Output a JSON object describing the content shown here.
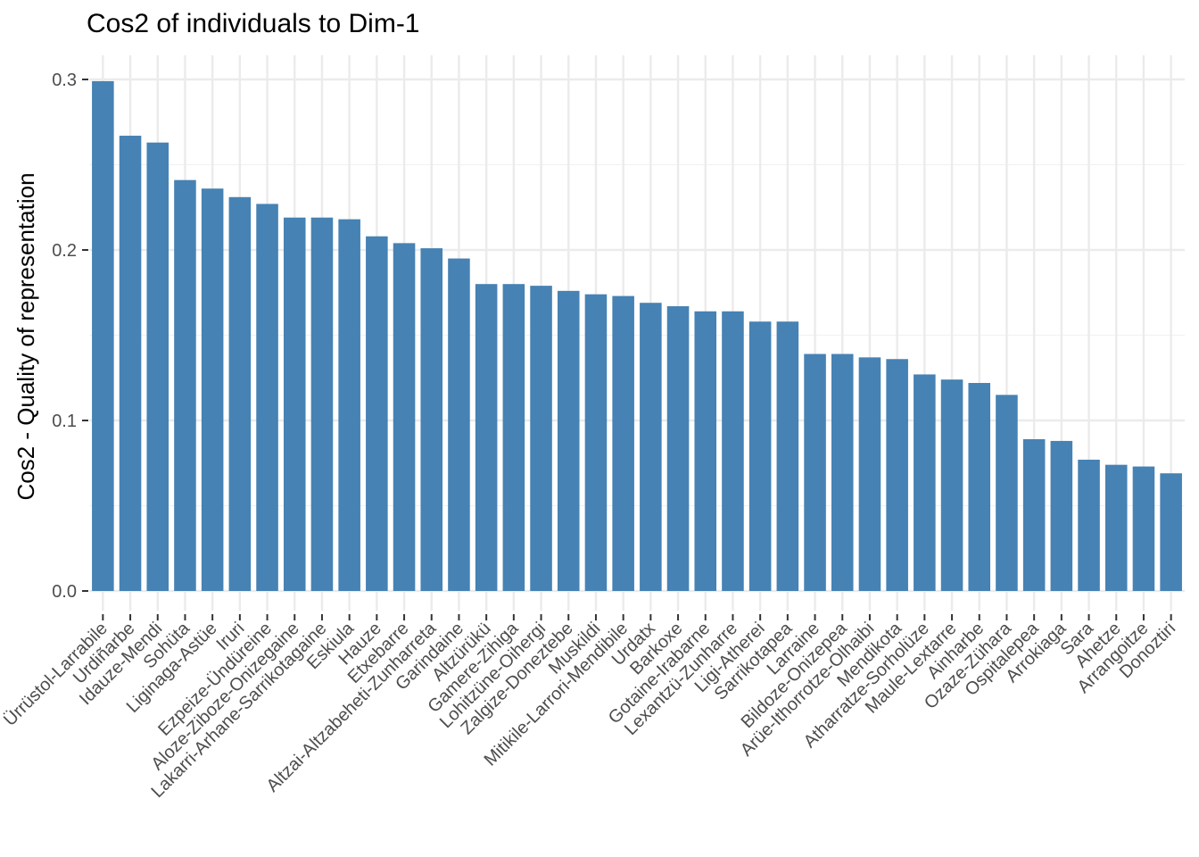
{
  "chart_data": {
    "type": "bar",
    "title": "Cos2 of individuals to Dim-1",
    "xlabel": "",
    "ylabel": "Cos2 - Quality of representation",
    "ylim": [
      0,
      0.31
    ],
    "yticks": [
      "0.0",
      "0.1",
      "0.2",
      "0.3"
    ],
    "grid": true,
    "bar_color": "#4682B4",
    "categories": [
      "Ürrüstol-Larrabile",
      "Urdiñarbe",
      "Idauze-Mendi",
      "Sohüta",
      "Liginaga-Astüe",
      "Iruri",
      "Ezpeize-Ündüreine",
      "Aloze-Ziboze-Onizegaine",
      "Lakarri-Arhane-Sarrikotagaine",
      "Eskiula",
      "Hauze",
      "Etxebarre",
      "Altzai-Altzabeheti-Zunharreta",
      "Garindaine",
      "Altzürükü",
      "Gamere-Zihiga",
      "Lohitzüne-Oihergi",
      "Zalgize-Doneztebe",
      "Muskildi",
      "Mitikile-Larrori-Mendibile",
      "Urdatx",
      "Barkoxe",
      "Gotaine-Irabarne",
      "Lexantzü-Zunharre",
      "Ligi-Atherei",
      "Sarrikotapea",
      "Larraine",
      "Bildoze-Onizepea",
      "Arüe-Ithorrotze-Olhaibi",
      "Mendikota",
      "Atharratze-Sorholüze",
      "Maule-Lextarre",
      "Ainharbe",
      "Ozaze-Zühara",
      "Ospitalepea",
      "Arrokiaga",
      "Sara",
      "Ahetze",
      "Arrangoitze",
      "Donoztiri"
    ],
    "values": [
      0.299,
      0.267,
      0.263,
      0.241,
      0.236,
      0.231,
      0.227,
      0.219,
      0.219,
      0.218,
      0.208,
      0.204,
      0.201,
      0.195,
      0.18,
      0.18,
      0.179,
      0.176,
      0.174,
      0.173,
      0.169,
      0.167,
      0.164,
      0.164,
      0.158,
      0.158,
      0.139,
      0.139,
      0.137,
      0.136,
      0.127,
      0.124,
      0.122,
      0.115,
      0.089,
      0.088,
      0.077,
      0.074,
      0.073,
      0.069
    ]
  }
}
